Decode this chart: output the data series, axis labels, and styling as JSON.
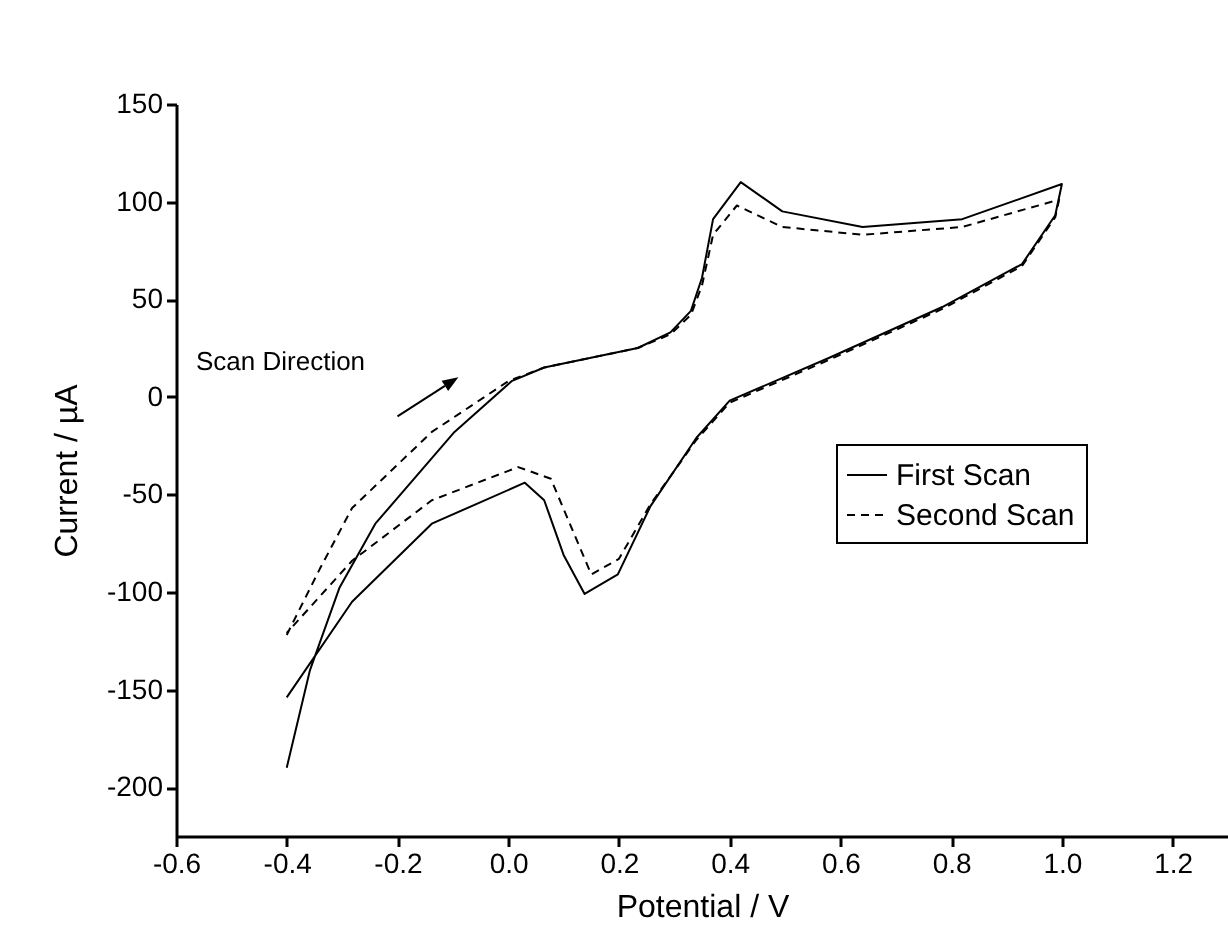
{
  "chart_data": {
    "type": "line",
    "xlabel": "Potential / V",
    "ylabel": "Current / µA",
    "xlim": [
      -0.6,
      1.3
    ],
    "ylim": [
      -225,
      150
    ],
    "xticks": [
      {
        "value": -0.6,
        "label": "-0.6"
      },
      {
        "value": -0.4,
        "label": "-0.4"
      },
      {
        "value": -0.2,
        "label": "-0.2"
      },
      {
        "value": 0,
        "label": "0.0"
      },
      {
        "value": 0.2,
        "label": "0.2"
      },
      {
        "value": 0.4,
        "label": "0.4"
      },
      {
        "value": 0.6,
        "label": "0.6"
      },
      {
        "value": 0.8,
        "label": "0.8"
      },
      {
        "value": 1,
        "label": "1.0"
      },
      {
        "value": 1.2,
        "label": "1.2"
      }
    ],
    "yticks": [
      -200,
      -150,
      -100,
      -50,
      0,
      50,
      100,
      150
    ],
    "grid": false,
    "legend": "right",
    "marker": "none",
    "annotations": [
      "Scan Direction"
    ],
    "series": [
      {
        "name": "First Scan",
        "color": "#000000",
        "line_style": "solid",
        "x": [
          -0.4,
          -0.358,
          -0.305,
          -0.24,
          -0.097,
          0.006,
          0.065,
          0.234,
          0.293,
          0.33,
          0.35,
          0.37,
          0.42,
          0.495,
          0.64,
          0.82,
          1.0,
          0.988,
          0.928,
          0.784,
          0.58,
          0.4,
          0.34,
          0.257,
          0.198,
          0.138,
          0.1,
          0.065,
          0.03,
          -0.138,
          -0.282,
          -0.4
        ],
        "values": [
          -190,
          -140,
          -98,
          -65,
          -18,
          8,
          15,
          25,
          33,
          44,
          61,
          91,
          110,
          95,
          87,
          91,
          109,
          93,
          68,
          46,
          20,
          -2,
          -21,
          -56,
          -91,
          -101,
          -81,
          -53,
          -44,
          -65,
          -105,
          -154
        ]
      },
      {
        "name": "Second Scan",
        "color": "#000000",
        "line_style": "dashed",
        "x": [
          -0.4,
          -0.34,
          -0.282,
          -0.138,
          0.0,
          0.065,
          0.234,
          0.293,
          0.33,
          0.35,
          0.37,
          0.413,
          0.495,
          0.64,
          0.82,
          0.995,
          0.988,
          0.928,
          0.784,
          0.58,
          0.4,
          0.34,
          0.257,
          0.2,
          0.15,
          0.077,
          0.018,
          -0.138,
          -0.282,
          -0.4
        ],
        "values": [
          -122,
          -88,
          -57,
          -18,
          8,
          15,
          25,
          32,
          42,
          57,
          83,
          98,
          87,
          83,
          87,
          101,
          92,
          67,
          45,
          19,
          -3,
          -22,
          -55,
          -83,
          -91,
          -42,
          -36,
          -53,
          -84,
          -121
        ]
      }
    ]
  }
}
